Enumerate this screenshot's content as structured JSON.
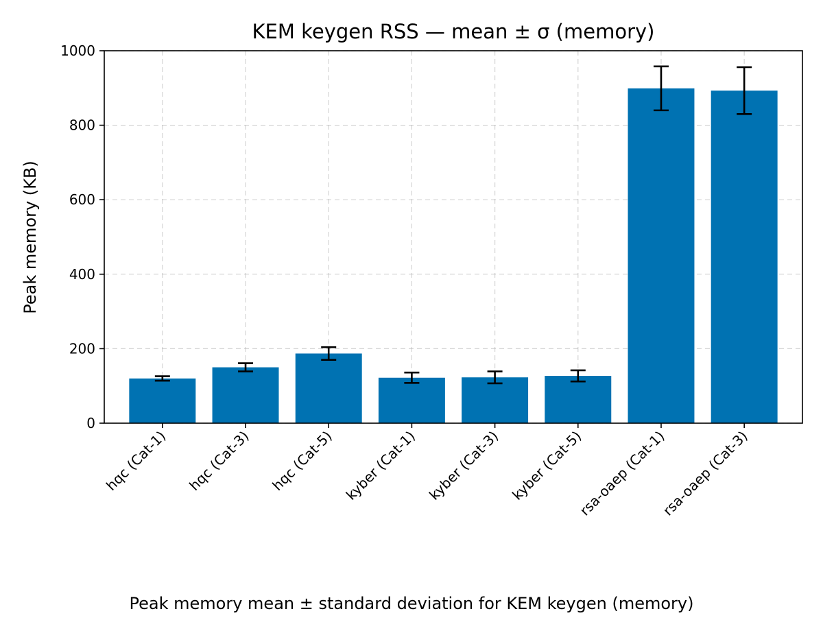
{
  "chart_data": {
    "type": "bar",
    "title": "KEM keygen RSS — mean ± σ (memory)",
    "xlabel": "",
    "ylabel": "Peak memory (KB)",
    "categories": [
      "hqc (Cat-1)",
      "hqc (Cat-3)",
      "hqc (Cat-5)",
      "kyber (Cat-1)",
      "kyber (Cat-3)",
      "kyber (Cat-5)",
      "rsa-oaep (Cat-1)",
      "rsa-oaep (Cat-3)"
    ],
    "values": [
      120,
      150,
      187,
      122,
      123,
      127,
      899,
      893
    ],
    "errors": [
      6,
      11,
      17,
      14,
      16,
      15,
      59,
      63
    ],
    "ylim": [
      0,
      1000
    ],
    "yticks": [
      0,
      200,
      400,
      600,
      800,
      1000
    ],
    "grid": true,
    "bar_color": "#0072b2",
    "error_color": "#000000"
  },
  "caption": "Peak memory mean ± standard deviation for KEM keygen (memory)"
}
